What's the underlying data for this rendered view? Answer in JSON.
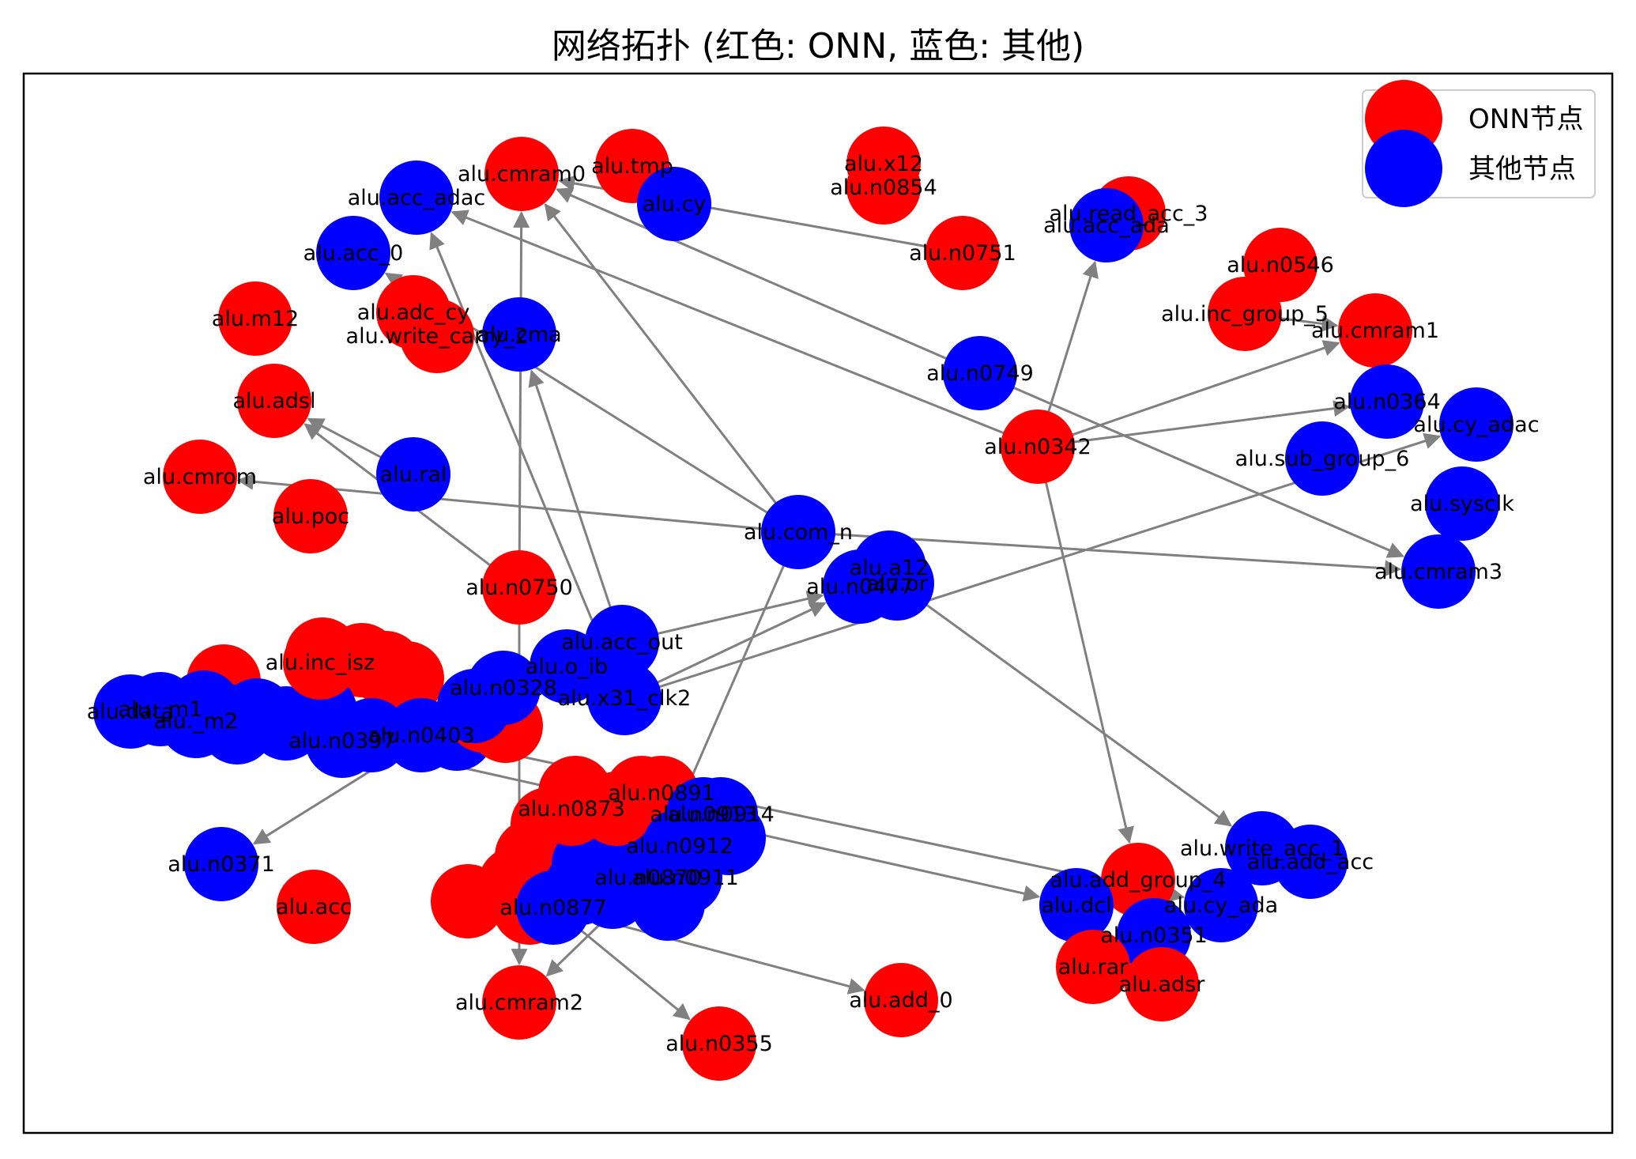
{
  "title": "网络拓扑 (红色: ONN, 蓝色: 其他)",
  "colors": {
    "onn": "#ff0000",
    "other": "#0000ff",
    "edge": "#808080"
  },
  "legend": [
    {
      "label": "ONN节点",
      "color": "#ff0000"
    },
    {
      "label": "其他节点",
      "color": "#0000ff"
    }
  ],
  "nodes": [
    {
      "id": "alu.cmram0",
      "type": "onn"
    },
    {
      "id": "alu.tmp",
      "type": "onn"
    },
    {
      "id": "alu.cy",
      "type": "other"
    },
    {
      "id": "alu.acc_adac",
      "type": "other"
    },
    {
      "id": "alu.acc_0",
      "type": "other"
    },
    {
      "id": "alu.x12",
      "type": "onn"
    },
    {
      "id": "alu.n0854",
      "type": "onn"
    },
    {
      "id": "alu.n0751",
      "type": "onn"
    },
    {
      "id": "alu.read_acc_3",
      "type": "onn"
    },
    {
      "id": "alu.acc_ada",
      "type": "other"
    },
    {
      "id": "alu.n0546",
      "type": "onn"
    },
    {
      "id": "alu.inc_group_5",
      "type": "onn"
    },
    {
      "id": "alu.cmram1",
      "type": "onn"
    },
    {
      "id": "alu.m12",
      "type": "onn"
    },
    {
      "id": "alu.adc_cy",
      "type": "onn"
    },
    {
      "id": "alu.write_carry_2",
      "type": "onn"
    },
    {
      "id": "alu.cma",
      "type": "other"
    },
    {
      "id": "alu.n0749",
      "type": "other"
    },
    {
      "id": "alu.n0364",
      "type": "other"
    },
    {
      "id": "alu.cy_adac",
      "type": "other"
    },
    {
      "id": "alu.adsl",
      "type": "onn"
    },
    {
      "id": "alu.n0342",
      "type": "onn"
    },
    {
      "id": "alu.sub_group_6",
      "type": "other"
    },
    {
      "id": "alu.cmrom",
      "type": "onn"
    },
    {
      "id": "alu.ral",
      "type": "other"
    },
    {
      "id": "alu.poc",
      "type": "onn"
    },
    {
      "id": "alu.sysclk",
      "type": "other"
    },
    {
      "id": "alu.com_n",
      "type": "other"
    },
    {
      "id": "alu.a12",
      "type": "other"
    },
    {
      "id": "alu.n0477",
      "type": "other"
    },
    {
      "id": "alu.or",
      "type": "other"
    },
    {
      "id": "alu.cmram3",
      "type": "other"
    },
    {
      "id": "alu.n0750",
      "type": "onn"
    },
    {
      "id": "alu.acc_out",
      "type": "other"
    },
    {
      "id": "alu.inc_isz",
      "type": "onn"
    },
    {
      "id": "alu.o_ib",
      "type": "other"
    },
    {
      "id": "alu.n0328",
      "type": "other"
    },
    {
      "id": "alu.x31_clk2",
      "type": "other"
    },
    {
      "id": "alu._m1",
      "type": "other"
    },
    {
      "id": "alu.data",
      "type": "other"
    },
    {
      "id": "alu._m2",
      "type": "other"
    },
    {
      "id": "alu.n0397",
      "type": "other"
    },
    {
      "id": "alu.n0403",
      "type": "other"
    },
    {
      "id": "alu.n0873",
      "type": "onn"
    },
    {
      "id": "alu.n0891",
      "type": "onn"
    },
    {
      "id": "alu.n0913",
      "type": "other"
    },
    {
      "id": "alu.n0914",
      "type": "other"
    },
    {
      "id": "alu.n0912",
      "type": "other"
    },
    {
      "id": "alu.n0870",
      "type": "other"
    },
    {
      "id": "alu.n0911",
      "type": "other"
    },
    {
      "id": "alu.n0877",
      "type": "other"
    },
    {
      "id": "alu.n0371",
      "type": "other"
    },
    {
      "id": "alu.acc",
      "type": "onn"
    },
    {
      "id": "alu.write_acc_1",
      "type": "other"
    },
    {
      "id": "alu.add_acc",
      "type": "other"
    },
    {
      "id": "alu.add_group_4",
      "type": "onn"
    },
    {
      "id": "alu.dcl",
      "type": "other"
    },
    {
      "id": "alu.cy_ada",
      "type": "other"
    },
    {
      "id": "alu.n0351",
      "type": "other"
    },
    {
      "id": "alu.rar",
      "type": "onn"
    },
    {
      "id": "alu.adsr",
      "type": "onn"
    },
    {
      "id": "alu.cmram2",
      "type": "onn"
    },
    {
      "id": "alu.add_0",
      "type": "onn"
    },
    {
      "id": "alu.n0355",
      "type": "onn"
    }
  ],
  "edges": [
    [
      "alu.n0751",
      "alu.cmram0"
    ],
    [
      "alu.n0749",
      "alu.cmram0"
    ],
    [
      "alu.n0750",
      "alu.cmram0"
    ],
    [
      "alu.com_n",
      "alu.cmram0"
    ],
    [
      "alu.n0342",
      "alu.acc_adac"
    ],
    [
      "alu.x31_clk2",
      "alu.acc_adac"
    ],
    [
      "alu.com_n",
      "alu.acc_0"
    ],
    [
      "alu.n0342",
      "alu.acc_ada"
    ],
    [
      "alu.n0342",
      "alu.cmram1"
    ],
    [
      "alu.n0342",
      "alu.n0364"
    ],
    [
      "alu.x31_clk2",
      "alu.cy_adac"
    ],
    [
      "alu.n0342",
      "alu.add_group_4"
    ],
    [
      "alu.ral",
      "alu.adsl"
    ],
    [
      "alu.n0750",
      "alu.adsl"
    ],
    [
      "alu.com_n",
      "alu.cmrom"
    ],
    [
      "alu.com_n",
      "alu.cmram3"
    ],
    [
      "alu.n0749",
      "alu.cmram3"
    ],
    [
      "alu.inc_group_5",
      "alu.cmram1"
    ],
    [
      "alu.acc_out",
      "alu.n0477"
    ],
    [
      "alu.x31_clk2",
      "alu.n0477"
    ],
    [
      "alu.n0328",
      "alu.n0371"
    ],
    [
      "alu.n0750",
      "alu.cmram2"
    ],
    [
      "alu.n0870",
      "alu.cmram2"
    ],
    [
      "alu.n0877",
      "alu.n0355"
    ],
    [
      "alu.n0877",
      "alu.add_0"
    ],
    [
      "alu.com_n",
      "alu.n0870"
    ],
    [
      "alu.or",
      "alu.write_acc_1"
    ],
    [
      "alu.n0397",
      "alu.dcl"
    ],
    [
      "alu.n0403",
      "alu.cy_ada"
    ],
    [
      "alu.acc_out",
      "alu.cma"
    ]
  ]
}
